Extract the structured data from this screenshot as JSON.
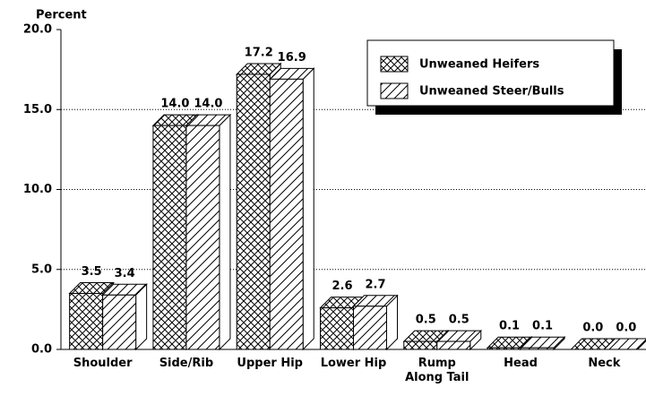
{
  "chart_data": {
    "type": "bar3d",
    "y_label": "Percent",
    "categories": [
      "Shoulder",
      "Side/Rib",
      "Upper Hip",
      "Lower Hip",
      "Rump\nAlong Tail",
      "Head",
      "Neck"
    ],
    "series": [
      {
        "name": "Unweaned Heifers",
        "color": "#000000",
        "pattern": "crosshatch",
        "values": [
          3.5,
          14.0,
          17.2,
          2.6,
          0.5,
          0.1,
          0.0
        ],
        "value_labels": [
          "3.5",
          "14.0",
          "17.2",
          "2.6",
          "0.5",
          "0.1",
          "0.0"
        ]
      },
      {
        "name": "Unweaned Steer/Bulls",
        "color": "#000000",
        "pattern": "diagonal",
        "values": [
          3.4,
          14.0,
          16.9,
          2.7,
          0.5,
          0.1,
          0.0
        ],
        "value_labels": [
          "3.4",
          "14.0",
          "16.9",
          "2.7",
          "0.5",
          "0.1",
          "0.0"
        ]
      }
    ],
    "ylim": [
      0,
      20
    ],
    "yticks": [
      {
        "value": 0,
        "label": "0.0"
      },
      {
        "value": 5,
        "label": "5.0"
      },
      {
        "value": 10,
        "label": "10.0"
      },
      {
        "value": 15,
        "label": "15.0"
      },
      {
        "value": 20,
        "label": "20.0"
      }
    ],
    "grid": true,
    "legend": "top-right"
  }
}
